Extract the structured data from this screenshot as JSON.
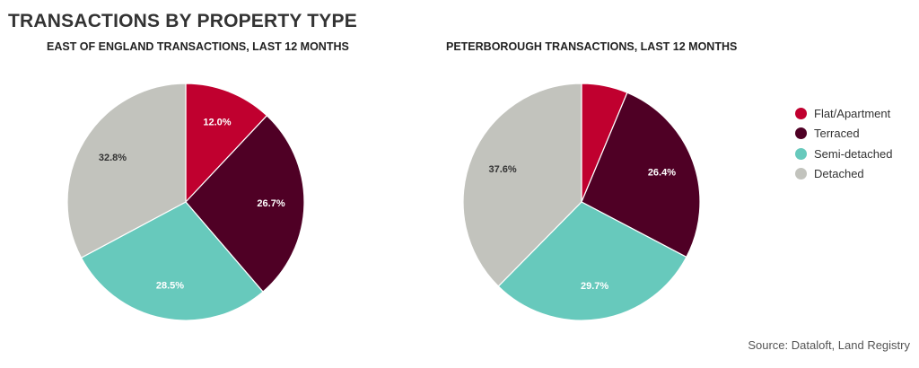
{
  "title": "TRANSACTIONS BY PROPERTY TYPE",
  "source": "Source: Dataloft, Land Registry",
  "legend": {
    "items": [
      {
        "label": "Flat/Apartment",
        "color": "#c0002f"
      },
      {
        "label": "Terraced",
        "color": "#4f0025"
      },
      {
        "label": "Semi-detached",
        "color": "#67c9bc"
      },
      {
        "label": "Detached",
        "color": "#c2c3bd"
      }
    ]
  },
  "chart_data": [
    {
      "type": "pie",
      "title": "EAST OF ENGLAND TRANSACTIONS, LAST 12 MONTHS",
      "categories": [
        "Flat/Apartment",
        "Terraced",
        "Semi-detached",
        "Detached"
      ],
      "values": [
        12.0,
        26.7,
        28.5,
        32.8
      ],
      "labels": [
        "12.0%",
        "26.7%",
        "28.5%",
        "32.8%"
      ],
      "colors": [
        "#c0002f",
        "#4f0025",
        "#67c9bc",
        "#c2c3bd"
      ],
      "label_colors": [
        "#ffffff",
        "#ffffff",
        "#ffffff",
        "#333333"
      ],
      "legend": "right"
    },
    {
      "type": "pie",
      "title": "PETERBOROUGH TRANSACTIONS, LAST 12 MONTHS",
      "categories": [
        "Flat/Apartment",
        "Terraced",
        "Semi-detached",
        "Detached"
      ],
      "values": [
        6.3,
        26.4,
        29.7,
        37.6
      ],
      "labels": [
        "",
        "26.4%",
        "29.7%",
        "37.6%"
      ],
      "colors": [
        "#c0002f",
        "#4f0025",
        "#67c9bc",
        "#c2c3bd"
      ],
      "label_colors": [
        "#ffffff",
        "#ffffff",
        "#ffffff",
        "#333333"
      ],
      "legend": "right"
    }
  ]
}
